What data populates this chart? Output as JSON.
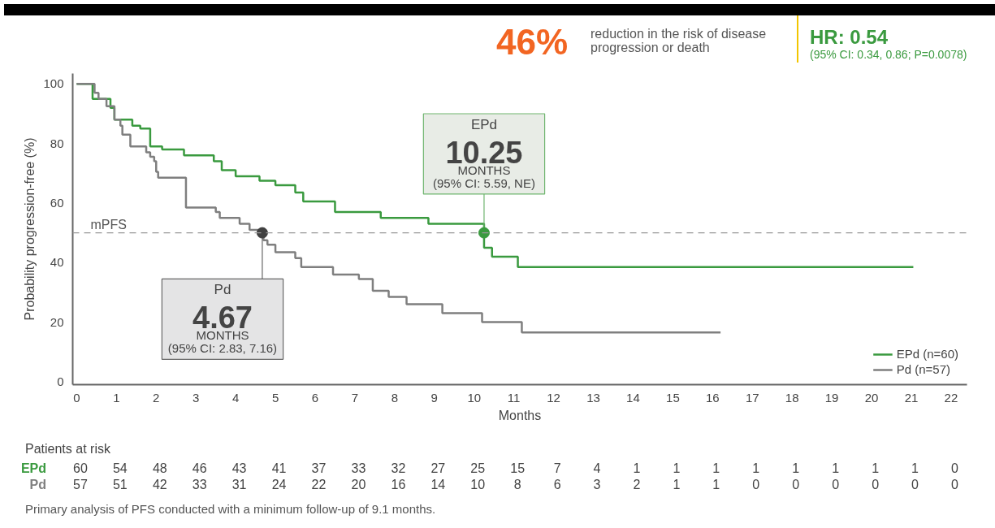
{
  "chart_data": {
    "type": "step",
    "xlabel": "Months",
    "ylabel": "Probability progression-free (%)",
    "xlim": [
      -0.1,
      22.4
    ],
    "ylim": [
      -1,
      103.5
    ],
    "xticks": [
      0,
      1,
      2,
      3,
      4,
      5,
      6,
      7,
      8,
      9,
      10,
      11,
      12,
      13,
      14,
      15,
      16,
      17,
      18,
      19,
      20,
      21,
      22
    ],
    "yticks": [
      0,
      20,
      40,
      60,
      80,
      100
    ],
    "grid": false,
    "legend": "bottom right",
    "line_style": "solid",
    "marker": "none",
    "series": [
      {
        "name": "EPd (n=60)",
        "color": "#3a9a3f",
        "x": [
          0,
          0.4,
          0.85,
          0.95,
          1.4,
          1.6,
          1.85,
          2.15,
          2.7,
          3.45,
          3.65,
          4.0,
          4.6,
          5.0,
          5.5,
          5.7,
          6.5,
          7.65,
          8.85,
          10.25,
          10.45,
          11.1,
          21.05
        ],
        "values": [
          100,
          95,
          92,
          88,
          86,
          85,
          79,
          78,
          76,
          74,
          71,
          69,
          67.5,
          66,
          63.5,
          60.5,
          57,
          55,
          53,
          45,
          42,
          38.5,
          38.5
        ]
      },
      {
        "name": "Pd (n=57)",
        "color": "#7f7f7f",
        "x": [
          0,
          0.45,
          0.55,
          0.75,
          0.95,
          1.1,
          1.15,
          1.35,
          1.75,
          1.85,
          1.95,
          2.0,
          2.05,
          2.75,
          3.5,
          3.6,
          4.1,
          4.35,
          4.7,
          4.8,
          5.0,
          5.5,
          5.65,
          6.45,
          7.1,
          7.45,
          7.85,
          8.3,
          9.2,
          10.2,
          11.2,
          16.2
        ],
        "values": [
          100,
          97,
          95,
          92.5,
          88,
          86,
          83,
          79,
          77,
          75.5,
          74,
          70.5,
          68.5,
          58.5,
          57,
          55,
          53,
          51,
          47.5,
          46,
          43.5,
          41.5,
          38.5,
          36,
          34.5,
          30.5,
          28.5,
          26,
          23,
          20,
          16.5,
          16.5
        ]
      }
    ],
    "ref_lines": [
      {
        "axis": "y",
        "value": 50,
        "label": "mPFS",
        "color": "#999999",
        "line_style": "dashed"
      }
    ],
    "annotations": [
      {
        "text": "EPd\n10.25\nMONTHS\n(95% CI: 5.59, NE)",
        "x": 10.25,
        "y": 50
      },
      {
        "text": "Pd\n4.67\nMONTHS\n(95% CI: 2.83, 7.16)",
        "x": 4.67,
        "y": 50
      },
      "46%",
      "reduction in the risk of disease progression or death",
      "HR: 0.54",
      "(95% CI: 0.34, 0.86; P=0.0078)",
      "Patients at risk",
      "EPd 60 54 48 46 43 41 37 33 32 27 25 15 7 4 1 1 1 1 1 1 1 1 0",
      "Pd 57 51 42 33 31 24 22 20 16 14 10 8 6 3 2 1 1 0 0 0 0 0 0",
      "Primary analysis of PFS conducted with a minimum follow-up of 9.1 months."
    ]
  }
}
